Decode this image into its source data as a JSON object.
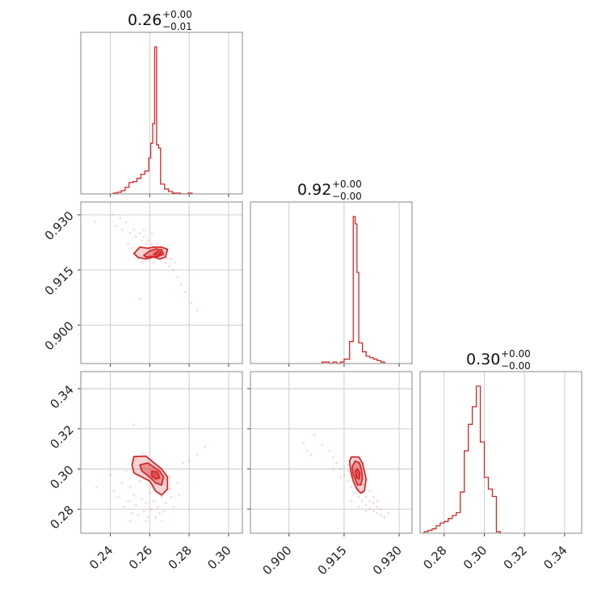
{
  "chart_data": {
    "type": "corner",
    "color": "#d62728",
    "grid": true,
    "parameters": [
      {
        "title": {
          "value": "0.26",
          "upper": "+0.00",
          "lower": "−0.01"
        },
        "range": [
          0.225,
          0.307
        ],
        "ticks": [
          0.24,
          0.26,
          0.28,
          0.3
        ],
        "tick_labels": [
          "0.24",
          "0.26",
          "0.28",
          "0.30"
        ],
        "histogram": {
          "edges": [
            0.2415,
            0.2435,
            0.2455,
            0.2475,
            0.2495,
            0.2515,
            0.2535,
            0.2555,
            0.2575,
            0.2595,
            0.2605,
            0.2615,
            0.2625,
            0.2635,
            0.2645,
            0.2655,
            0.2675,
            0.2695,
            0.2715,
            0.2735,
            0.2755,
            0.2775,
            0.2795,
            0.2815
          ],
          "counts": [
            1,
            2,
            4,
            8,
            14,
            15,
            19,
            24,
            28,
            44,
            62,
            86,
            180,
            60,
            56,
            12,
            6,
            3,
            1,
            1,
            0,
            0,
            1
          ]
        }
      },
      {
        "title": {
          "value": "0.92",
          "upper": "+0.00",
          "lower": "−0.00"
        },
        "range": [
          0.8895,
          0.9335
        ],
        "ticks": [
          0.9,
          0.915,
          0.93
        ],
        "tick_labels": [
          "0.900",
          "0.915",
          "0.930"
        ],
        "histogram": {
          "edges": [
            0.909,
            0.91,
            0.911,
            0.912,
            0.913,
            0.914,
            0.915,
            0.9165,
            0.9175,
            0.918,
            0.9185,
            0.919,
            0.92,
            0.921,
            0.922,
            0.923,
            0.924,
            0.925,
            0.926
          ],
          "counts": [
            1,
            1,
            0,
            1,
            0,
            1,
            3,
            15,
            100,
            95,
            62,
            14,
            8,
            5,
            4,
            3,
            2,
            1
          ]
        }
      },
      {
        "title": {
          "value": "0.30",
          "upper": "+0.00",
          "lower": "−0.00"
        },
        "range": [
          0.268,
          0.3485
        ],
        "ticks": [
          0.28,
          0.3,
          0.32,
          0.34
        ],
        "tick_labels": [
          "0.28",
          "0.30",
          "0.32",
          "0.34"
        ],
        "histogram": {
          "edges": [
            0.27,
            0.272,
            0.274,
            0.276,
            0.278,
            0.28,
            0.282,
            0.284,
            0.286,
            0.288,
            0.29,
            0.292,
            0.294,
            0.296,
            0.298,
            0.3,
            0.302,
            0.304,
            0.306,
            0.308
          ],
          "counts": [
            1,
            2,
            3,
            5,
            7,
            8,
            10,
            12,
            14,
            28,
            56,
            74,
            86,
            100,
            62,
            38,
            30,
            25,
            1
          ]
        }
      }
    ],
    "pairs": [
      {
        "x_param": 0,
        "y_param": 1,
        "points": [
          [
            0.232,
            0.928
          ],
          [
            0.243,
            0.927
          ],
          [
            0.246,
            0.926
          ],
          [
            0.248,
            0.928
          ],
          [
            0.25,
            0.925
          ],
          [
            0.252,
            0.926
          ],
          [
            0.253,
            0.924
          ],
          [
            0.255,
            0.925
          ],
          [
            0.256,
            0.923
          ],
          [
            0.257,
            0.924
          ],
          [
            0.258,
            0.922
          ],
          [
            0.259,
            0.923
          ],
          [
            0.26,
            0.921
          ],
          [
            0.261,
            0.922
          ],
          [
            0.262,
            0.92
          ],
          [
            0.263,
            0.921
          ],
          [
            0.264,
            0.919
          ],
          [
            0.265,
            0.92
          ],
          [
            0.266,
            0.918
          ],
          [
            0.267,
            0.919
          ],
          [
            0.268,
            0.917
          ],
          [
            0.269,
            0.918
          ],
          [
            0.27,
            0.916
          ],
          [
            0.272,
            0.915
          ],
          [
            0.274,
            0.913
          ],
          [
            0.276,
            0.911
          ],
          [
            0.278,
            0.909
          ],
          [
            0.281,
            0.906
          ],
          [
            0.284,
            0.904
          ],
          [
            0.254,
            0.918
          ],
          [
            0.256,
            0.917
          ],
          [
            0.258,
            0.919
          ],
          [
            0.26,
            0.918
          ],
          [
            0.262,
            0.917
          ],
          [
            0.264,
            0.922
          ],
          [
            0.266,
            0.921
          ],
          [
            0.268,
            0.92
          ],
          [
            0.251,
            0.921
          ],
          [
            0.253,
            0.919
          ],
          [
            0.271,
            0.918
          ],
          [
            0.273,
            0.917
          ],
          [
            0.249,
            0.922
          ],
          [
            0.257,
            0.926
          ],
          [
            0.261,
            0.925
          ],
          [
            0.245,
            0.929
          ],
          [
            0.241,
            0.93
          ],
          [
            0.255,
            0.907
          ]
        ],
        "contours": [
          [
            [
              0.252,
              0.9195
            ],
            [
              0.255,
              0.9212
            ],
            [
              0.259,
              0.9209
            ],
            [
              0.262,
              0.9212
            ],
            [
              0.266,
              0.9212
            ],
            [
              0.269,
              0.9206
            ],
            [
              0.268,
              0.9185
            ],
            [
              0.265,
              0.918
            ],
            [
              0.262,
              0.9185
            ],
            [
              0.258,
              0.918
            ],
            [
              0.254,
              0.9184
            ]
          ],
          [
            [
              0.257,
              0.919
            ],
            [
              0.26,
              0.9202
            ],
            [
              0.263,
              0.9207
            ],
            [
              0.266,
              0.9205
            ],
            [
              0.267,
              0.9193
            ],
            [
              0.264,
              0.9186
            ],
            [
              0.261,
              0.9187
            ],
            [
              0.258,
              0.9185
            ]
          ],
          [
            [
              0.262,
              0.9192
            ],
            [
              0.264,
              0.9201
            ],
            [
              0.266,
              0.9198
            ],
            [
              0.265,
              0.919
            ]
          ]
        ]
      },
      {
        "x_param": 0,
        "y_param": 2,
        "points": [
          [
            0.233,
            0.291
          ],
          [
            0.24,
            0.297
          ],
          [
            0.242,
            0.289
          ],
          [
            0.244,
            0.286
          ],
          [
            0.246,
            0.293
          ],
          [
            0.247,
            0.281
          ],
          [
            0.248,
            0.299
          ],
          [
            0.249,
            0.284
          ],
          [
            0.25,
            0.291
          ],
          [
            0.251,
            0.278
          ],
          [
            0.252,
            0.287
          ],
          [
            0.253,
            0.282
          ],
          [
            0.254,
            0.277
          ],
          [
            0.255,
            0.294
          ],
          [
            0.256,
            0.285
          ],
          [
            0.257,
            0.279
          ],
          [
            0.258,
            0.283
          ],
          [
            0.259,
            0.276
          ],
          [
            0.26,
            0.288
          ],
          [
            0.261,
            0.28
          ],
          [
            0.262,
            0.284
          ],
          [
            0.263,
            0.276
          ],
          [
            0.264,
            0.281
          ],
          [
            0.265,
            0.278
          ],
          [
            0.266,
            0.286
          ],
          [
            0.267,
            0.279
          ],
          [
            0.268,
            0.283
          ],
          [
            0.27,
            0.29
          ],
          [
            0.271,
            0.286
          ],
          [
            0.272,
            0.281
          ],
          [
            0.274,
            0.293
          ],
          [
            0.275,
            0.287
          ],
          [
            0.277,
            0.303
          ],
          [
            0.28,
            0.304
          ],
          [
            0.284,
            0.307
          ],
          [
            0.288,
            0.311
          ],
          [
            0.252,
            0.322
          ],
          [
            0.256,
            0.3
          ],
          [
            0.259,
            0.296
          ],
          [
            0.262,
            0.292
          ],
          [
            0.265,
            0.298
          ],
          [
            0.268,
            0.295
          ],
          [
            0.27,
            0.296
          ],
          [
            0.253,
            0.305
          ],
          [
            0.257,
            0.308
          ],
          [
            0.25,
            0.274
          ],
          [
            0.258,
            0.274
          ],
          [
            0.266,
            0.274
          ]
        ],
        "contours": [
          [
            [
              0.251,
              0.302
            ],
            [
              0.252,
              0.3062
            ],
            [
              0.258,
              0.3064
            ],
            [
              0.261,
              0.304
            ],
            [
              0.266,
              0.3
            ],
            [
              0.269,
              0.296
            ],
            [
              0.269,
              0.29
            ],
            [
              0.266,
              0.287
            ],
            [
              0.263,
              0.289
            ],
            [
              0.26,
              0.294
            ],
            [
              0.256,
              0.296
            ],
            [
              0.252,
              0.298
            ]
          ],
          [
            [
              0.255,
              0.302
            ],
            [
              0.259,
              0.303
            ],
            [
              0.262,
              0.301
            ],
            [
              0.265,
              0.299
            ],
            [
              0.267,
              0.296
            ],
            [
              0.266,
              0.292
            ],
            [
              0.263,
              0.293
            ],
            [
              0.26,
              0.296
            ],
            [
              0.256,
              0.299
            ]
          ],
          [
            [
              0.261,
              0.299
            ],
            [
              0.264,
              0.2985
            ],
            [
              0.265,
              0.2955
            ],
            [
              0.263,
              0.295
            ],
            [
              0.261,
              0.2965
            ]
          ]
        ]
      },
      {
        "x_param": 1,
        "y_param": 2,
        "points": [
          [
            0.907,
            0.317
          ],
          [
            0.909,
            0.312
          ],
          [
            0.911,
            0.309
          ],
          [
            0.912,
            0.306
          ],
          [
            0.913,
            0.303
          ],
          [
            0.914,
            0.3
          ],
          [
            0.915,
            0.301
          ],
          [
            0.915,
            0.297
          ],
          [
            0.916,
            0.294
          ],
          [
            0.916,
            0.299
          ],
          [
            0.917,
            0.291
          ],
          [
            0.917,
            0.296
          ],
          [
            0.918,
            0.288
          ],
          [
            0.918,
            0.293
          ],
          [
            0.919,
            0.286
          ],
          [
            0.919,
            0.29
          ],
          [
            0.92,
            0.284
          ],
          [
            0.92,
            0.288
          ],
          [
            0.921,
            0.282
          ],
          [
            0.921,
            0.286
          ],
          [
            0.922,
            0.28
          ],
          [
            0.922,
            0.284
          ],
          [
            0.923,
            0.279
          ],
          [
            0.923,
            0.283
          ],
          [
            0.924,
            0.278
          ],
          [
            0.924,
            0.281
          ],
          [
            0.925,
            0.277
          ],
          [
            0.925,
            0.28
          ],
          [
            0.926,
            0.276
          ],
          [
            0.927,
            0.278
          ],
          [
            0.917,
            0.284
          ],
          [
            0.919,
            0.281
          ],
          [
            0.921,
            0.279
          ],
          [
            0.92,
            0.292
          ],
          [
            0.922,
            0.289
          ],
          [
            0.918,
            0.297
          ],
          [
            0.916,
            0.302
          ],
          [
            0.914,
            0.296
          ],
          [
            0.905,
            0.309
          ],
          [
            0.904,
            0.313
          ],
          [
            0.906,
            0.307
          ],
          [
            0.912,
            0.3
          ],
          [
            0.923,
            0.286
          ],
          [
            0.924,
            0.284
          ]
        ],
        "contours": [
          [
            [
              0.9165,
              0.304
            ],
            [
              0.917,
              0.306
            ],
            [
              0.919,
              0.306
            ],
            [
              0.92,
              0.303
            ],
            [
              0.9205,
              0.299
            ],
            [
              0.921,
              0.295
            ],
            [
              0.9205,
              0.289
            ],
            [
              0.9195,
              0.288
            ],
            [
              0.9185,
              0.29
            ],
            [
              0.9175,
              0.294
            ],
            [
              0.9168,
              0.299
            ]
          ],
          [
            [
              0.9172,
              0.301
            ],
            [
              0.918,
              0.304
            ],
            [
              0.9192,
              0.303
            ],
            [
              0.9198,
              0.299
            ],
            [
              0.92,
              0.295
            ],
            [
              0.9195,
              0.292
            ],
            [
              0.9187,
              0.292
            ],
            [
              0.918,
              0.295
            ],
            [
              0.9174,
              0.298
            ]
          ],
          [
            [
              0.918,
              0.299
            ],
            [
              0.9187,
              0.3
            ],
            [
              0.9193,
              0.298
            ],
            [
              0.9191,
              0.295
            ],
            [
              0.9184,
              0.2955
            ]
          ]
        ]
      }
    ]
  }
}
